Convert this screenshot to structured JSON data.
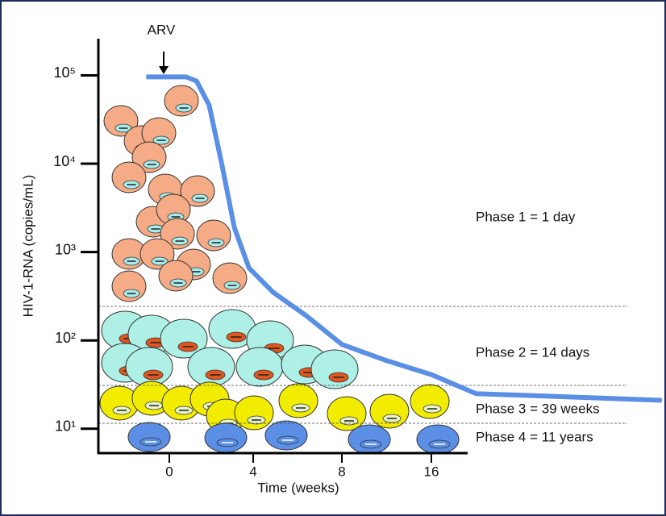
{
  "chart_data": {
    "type": "line",
    "annotation_arrow": "ARV",
    "y_label": "HIV-1-RNA (copies/mL)",
    "x_label": "Time (weeks)",
    "phases": [
      "Phase 1 =  1 day",
      "Phase 2 =  14 days",
      "Phase 3 =  39 weeks",
      "Phase 4 =  11 years"
    ],
    "log_y": true,
    "ylim": [
      5.3,
      260000
    ],
    "yticks": [
      {
        "value": 10,
        "label": "10¹"
      },
      {
        "value": 100,
        "label": "10²"
      },
      {
        "value": 1000,
        "label": "10³"
      },
      {
        "value": 10000,
        "label": "10⁴"
      },
      {
        "value": 100000,
        "label": "10⁵"
      }
    ],
    "xticks": [
      0,
      4,
      8,
      16
    ],
    "series": [
      {
        "color": "#5b8fe6",
        "x": [
          -1.1,
          0.8,
          1.3,
          1.9,
          2.5,
          3.1,
          3.8,
          4.9,
          6.4,
          8,
          12,
          16,
          20,
          27.9,
          36.6
        ],
        "values": [
          96000,
          96000,
          86000,
          46000,
          10000,
          1900,
          660,
          350,
          190,
          90,
          59,
          41,
          25,
          23,
          21
        ]
      }
    ]
  }
}
